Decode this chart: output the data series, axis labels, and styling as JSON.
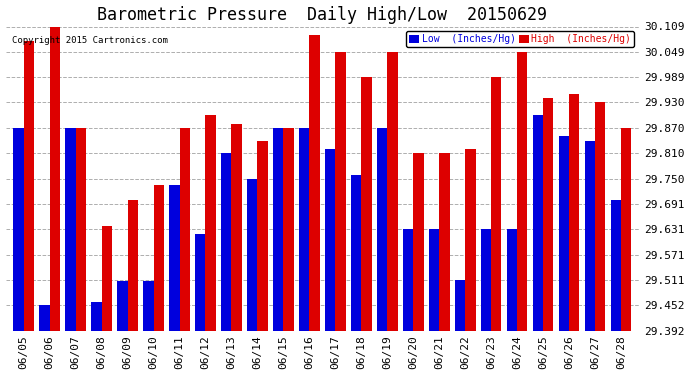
{
  "title": "Barometric Pressure  Daily High/Low  20150629",
  "copyright": "Copyright 2015 Cartronics.com",
  "legend_low": "Low  (Inches/Hg)",
  "legend_high": "High  (Inches/Hg)",
  "dates": [
    "06/05",
    "06/06",
    "06/07",
    "06/08",
    "06/09",
    "06/10",
    "06/11",
    "06/12",
    "06/13",
    "06/14",
    "06/15",
    "06/16",
    "06/17",
    "06/18",
    "06/19",
    "06/20",
    "06/21",
    "06/22",
    "06/23",
    "06/24",
    "06/25",
    "06/26",
    "06/27",
    "06/28"
  ],
  "low_values": [
    29.87,
    29.452,
    29.87,
    29.46,
    29.51,
    29.51,
    29.735,
    29.62,
    29.81,
    29.75,
    29.87,
    29.87,
    29.82,
    29.76,
    29.87,
    29.631,
    29.631,
    29.511,
    29.631,
    29.631,
    29.9,
    29.85,
    29.84,
    29.7
  ],
  "high_values": [
    30.075,
    30.109,
    29.87,
    29.64,
    29.7,
    29.735,
    29.87,
    29.9,
    29.88,
    29.84,
    29.87,
    30.09,
    30.05,
    29.989,
    30.05,
    29.81,
    29.81,
    29.82,
    29.989,
    30.049,
    29.94,
    29.95,
    29.93,
    29.87
  ],
  "bar_color_low": "#0000dd",
  "bar_color_high": "#dd0000",
  "background_color": "#ffffff",
  "plot_background": "#ffffff",
  "grid_color": "#999999",
  "ylim_min": 29.392,
  "ylim_max": 30.109,
  "yticks": [
    29.392,
    29.452,
    29.511,
    29.571,
    29.631,
    29.691,
    29.75,
    29.81,
    29.87,
    29.93,
    29.989,
    30.049,
    30.109
  ],
  "title_fontsize": 12,
  "tick_fontsize": 8,
  "bar_width": 0.4
}
